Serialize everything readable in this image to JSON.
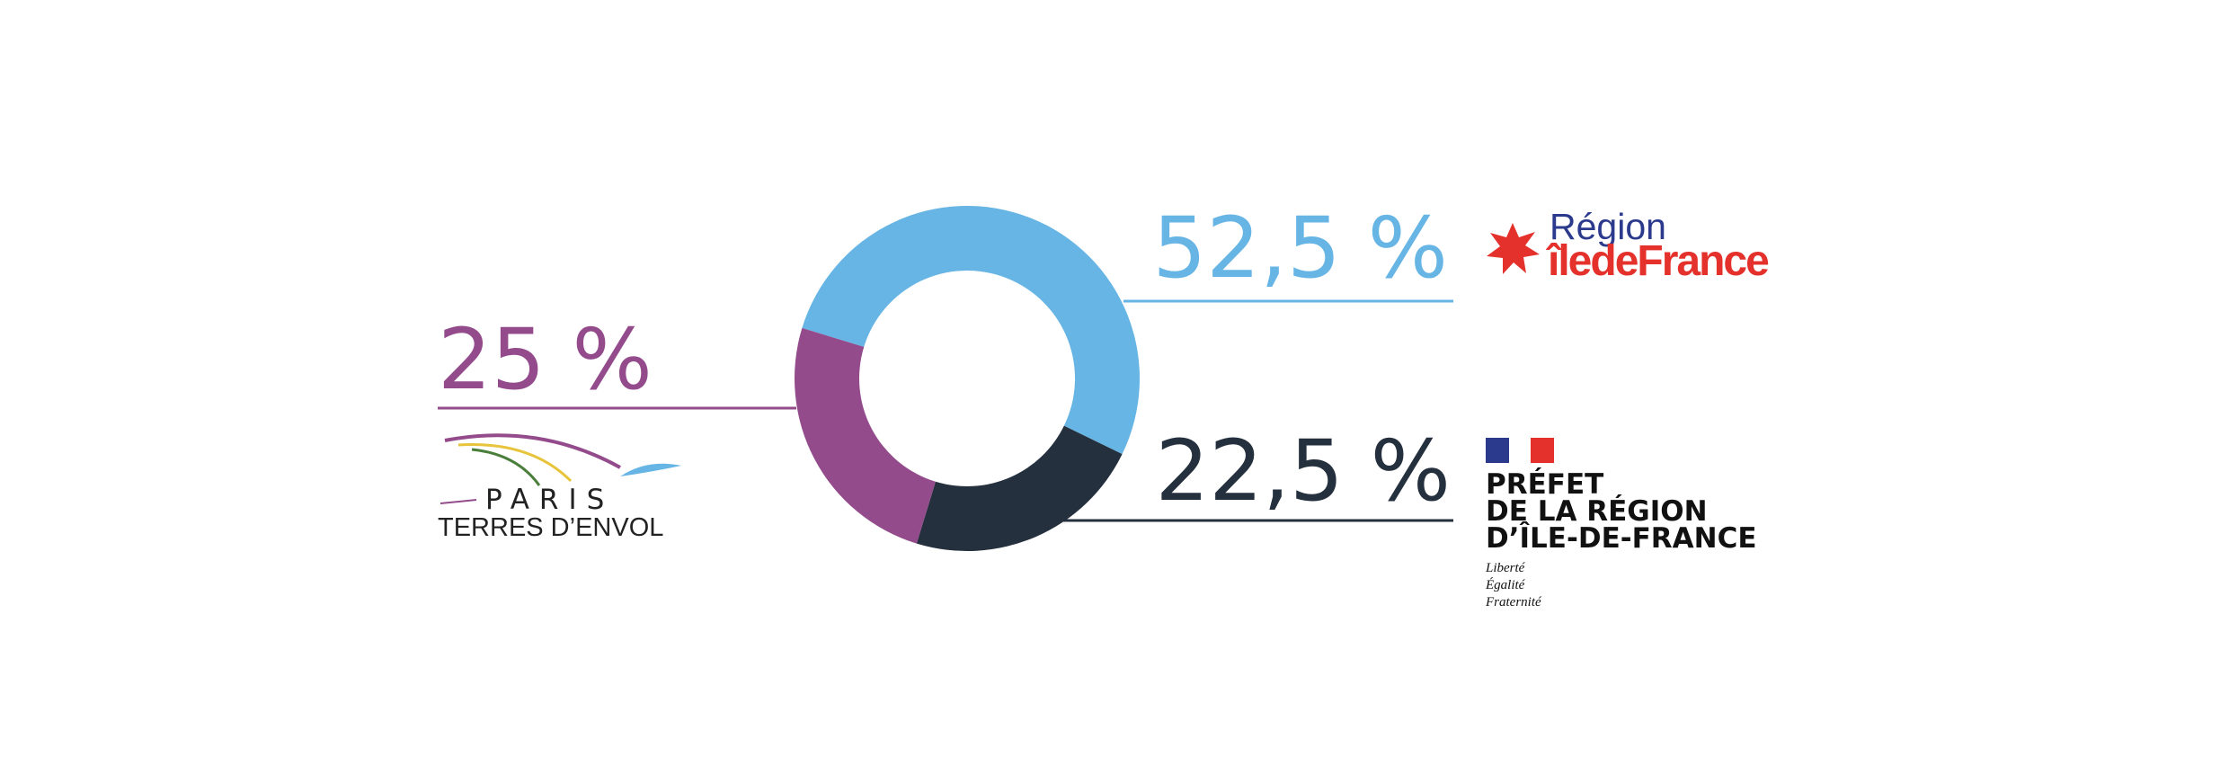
{
  "chart_data": {
    "type": "donut",
    "values": [
      52.5,
      22.5,
      25
    ],
    "value_labels": [
      "52,5 %",
      "22,5 %",
      "25 %"
    ],
    "colors": [
      "#67b5e5",
      "#24303d",
      "#934b8c"
    ],
    "logos": [
      {
        "lines": [
          "Région",
          "îledeFrance"
        ]
      },
      {
        "lines": [
          "PRÉFET",
          "DE LA RÉGION",
          "D’ÎLE-DE-FRANCE"
        ],
        "motto": [
          "Liberté",
          "Égalité",
          "Fraternité"
        ]
      },
      {
        "lines": [
          "PARIS",
          "TERRES D’ENVOL"
        ]
      }
    ]
  }
}
